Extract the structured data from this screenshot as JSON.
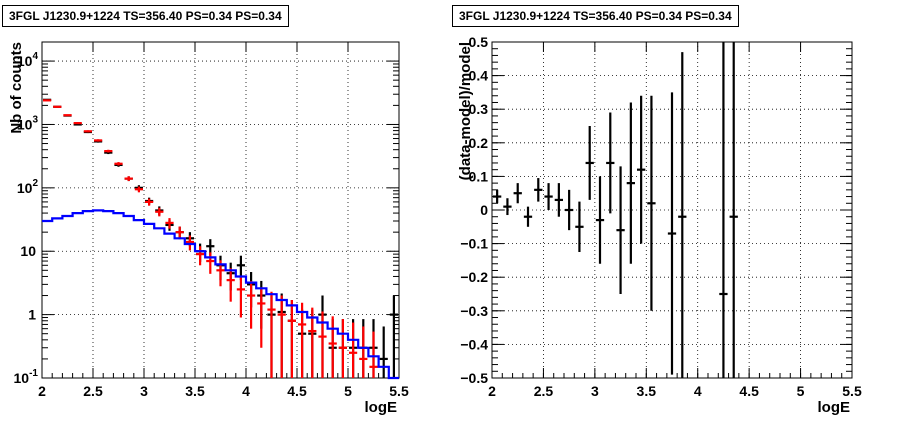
{
  "panels": [
    {
      "title": "3FGL J1230.9+1224 TS=356.40 PS=0.34 PS=0.34",
      "xlabel": "logE",
      "ylabel": "Nb of counts"
    },
    {
      "title": "3FGL J1230.9+1224 TS=356.40 PS=0.34 PS=0.34",
      "xlabel": "logE",
      "ylabel": "(data-model)/model"
    }
  ],
  "chart_data": [
    {
      "type": "line",
      "title": "3FGL J1230.9+1224 TS=356.40 PS=0.34 PS=0.34",
      "xlabel": "logE",
      "ylabel": "Nb of counts",
      "xlim": [
        2,
        5.5
      ],
      "ylim": [
        0.1,
        20000
      ],
      "yscale": "log",
      "grid": true,
      "xticks": [
        "2",
        "2.5",
        "3",
        "3.5",
        "4",
        "4.5",
        "5",
        "5.5"
      ],
      "yticks": [
        "10^-1",
        "1",
        "10",
        "10^2",
        "10^3",
        "10^4"
      ],
      "bin_edges": [
        2.0,
        2.1,
        2.2,
        2.3,
        2.4,
        2.5,
        2.6,
        2.7,
        2.8,
        2.9,
        3.0,
        3.1,
        3.2,
        3.3,
        3.4,
        3.5,
        3.6,
        3.7,
        3.8,
        3.9,
        4.0,
        4.1,
        4.2,
        4.3,
        4.4,
        4.5,
        4.6,
        4.7,
        4.8,
        4.9,
        5.0,
        5.1,
        5.2,
        5.3,
        5.4,
        5.5
      ],
      "series": [
        {
          "color": "#000000",
          "style": "errorbar",
          "x": [
            2.05,
            2.15,
            2.25,
            2.35,
            2.45,
            2.55,
            2.65,
            2.75,
            2.85,
            2.95,
            3.05,
            3.15,
            3.25,
            3.35,
            3.45,
            3.55,
            3.65,
            3.75,
            3.85,
            3.95,
            4.05,
            4.15,
            4.25,
            4.35,
            4.45,
            4.55,
            4.65,
            4.75,
            4.85,
            4.95,
            5.05,
            5.15,
            5.25,
            5.35,
            5.45
          ],
          "y": [
            2450,
            1900,
            1380,
            1000,
            760,
            540,
            360,
            230,
            140,
            100,
            62,
            44,
            26,
            20,
            16,
            10,
            12,
            6,
            4.5,
            6,
            3,
            2,
            1,
            1.1,
            0.8,
            0.5,
            0.5,
            1,
            0.3,
            0.3,
            0.3,
            0.3,
            0.3,
            0.2,
            1
          ],
          "yerr": [
            50,
            45,
            37,
            32,
            28,
            23,
            19,
            15,
            12,
            10,
            8,
            7,
            5,
            4.5,
            4,
            3.2,
            3.5,
            2.5,
            2.1,
            2.5,
            1.7,
            1.4,
            1,
            1.05,
            0.9,
            0.7,
            0.7,
            1,
            0.55,
            0.55,
            0.55,
            0.55,
            0.55,
            0.45,
            1
          ]
        },
        {
          "color": "#ff0000",
          "style": "errorbar",
          "x": [
            2.05,
            2.15,
            2.25,
            2.35,
            2.45,
            2.55,
            2.65,
            2.75,
            2.85,
            2.95,
            3.05,
            3.15,
            3.25,
            3.35,
            3.45,
            3.55,
            3.65,
            3.75,
            3.85,
            3.95,
            4.05,
            4.15,
            4.25,
            4.35,
            4.45,
            4.55,
            4.65,
            4.75,
            4.85,
            4.95,
            5.05,
            5.15,
            5.25
          ],
          "y": [
            2400,
            1900,
            1400,
            1050,
            780,
            560,
            380,
            240,
            140,
            95,
            60,
            42,
            28,
            20,
            14,
            9,
            7,
            5,
            3.5,
            2.5,
            2,
            1.5,
            1.2,
            1,
            0.8,
            0.7,
            0.55,
            0.45,
            0.35,
            0.3,
            0.25,
            0.2,
            0.15
          ],
          "yerr": [
            49,
            44,
            37,
            32,
            28,
            24,
            19,
            15,
            12,
            10,
            7.7,
            6.5,
            5.3,
            4.5,
            3.7,
            3,
            2.6,
            2.2,
            1.9,
            1.6,
            1.4,
            1.2,
            1.1,
            1,
            0.9,
            0.84,
            0.74,
            0.67,
            0.59,
            0.55,
            0.5,
            0.45,
            0.39
          ]
        },
        {
          "color": "#0000ff",
          "style": "step",
          "x": [
            2.0,
            2.1,
            2.2,
            2.3,
            2.4,
            2.5,
            2.6,
            2.7,
            2.8,
            2.9,
            3.0,
            3.1,
            3.2,
            3.3,
            3.4,
            3.5,
            3.6,
            3.7,
            3.8,
            3.9,
            4.0,
            4.1,
            4.2,
            4.3,
            4.4,
            4.5,
            4.6,
            4.7,
            4.8,
            4.9,
            5.0,
            5.1,
            5.2,
            5.3,
            5.4
          ],
          "y": [
            30,
            33,
            36,
            40,
            43,
            44,
            43,
            40,
            36,
            31,
            27,
            23,
            19,
            16,
            13,
            10,
            8,
            6.2,
            5,
            4,
            3.2,
            2.6,
            2.1,
            1.7,
            1.4,
            1.1,
            0.9,
            0.75,
            0.6,
            0.5,
            0.4,
            0.3,
            0.22,
            0.15,
            0.1
          ]
        }
      ]
    },
    {
      "type": "scatter",
      "title": "3FGL J1230.9+1224 TS=356.40 PS=0.34 PS=0.34",
      "xlabel": "logE",
      "ylabel": "(data-model)/model",
      "xlim": [
        2,
        5.5
      ],
      "ylim": [
        -0.5,
        0.5
      ],
      "grid": true,
      "xticks": [
        "2",
        "2.5",
        "3",
        "3.5",
        "4",
        "4.5",
        "5",
        "5.5"
      ],
      "yticks": [
        "-0.5",
        "-0.4",
        "-0.3",
        "-0.2",
        "-0.1",
        "0",
        "0.1",
        "0.2",
        "0.3",
        "0.4",
        "0.5"
      ],
      "series": [
        {
          "color": "#000000",
          "style": "errorbar",
          "x": [
            2.05,
            2.15,
            2.25,
            2.35,
            2.45,
            2.55,
            2.65,
            2.75,
            2.85,
            2.95,
            3.05,
            3.15,
            3.25,
            3.35,
            3.45,
            3.55,
            3.75,
            3.85,
            4.25,
            4.35
          ],
          "y": [
            0.04,
            0.01,
            0.05,
            -0.02,
            0.06,
            0.04,
            0.03,
            0.0,
            -0.05,
            0.14,
            -0.03,
            0.14,
            -0.06,
            0.08,
            0.12,
            0.02,
            -0.07,
            -0.02,
            -0.25,
            -0.02
          ],
          "yerr": [
            0.02,
            0.025,
            0.03,
            0.03,
            0.035,
            0.04,
            0.05,
            0.06,
            0.075,
            0.11,
            0.13,
            0.15,
            0.19,
            0.24,
            0.22,
            0.32,
            0.42,
            0.49,
            0.8,
            0.8
          ]
        }
      ]
    }
  ]
}
